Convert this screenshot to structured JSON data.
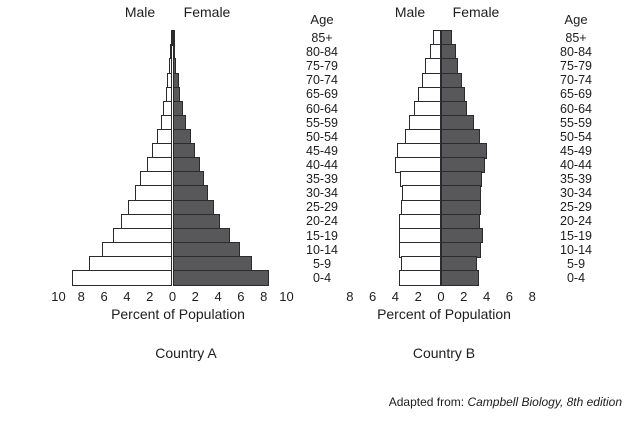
{
  "colors": {
    "background": "#ffffff",
    "male_fill": "#ffffff",
    "female_fill": "#58585a",
    "bar_border": "#2b2b2d",
    "text": "#1d1d1f"
  },
  "age_axis": {
    "title": "Age",
    "groups": [
      "85+",
      "80-84",
      "75-79",
      "70-74",
      "65-69",
      "60-64",
      "55-59",
      "50-54",
      "45-49",
      "40-44",
      "35-39",
      "30-34",
      "25-29",
      "20-24",
      "15-19",
      "10-14",
      "5-9",
      "0-4"
    ]
  },
  "attribution": {
    "prefix": "Adapted from: ",
    "source_italic": "Campbell Biology, 8th edition"
  },
  "chart_data": [
    {
      "type": "bar",
      "subtype": "population-pyramid",
      "title": "Country A",
      "xlabel": "Percent of Population",
      "male_label": "Male",
      "female_label": "Female",
      "categories": [
        "85+",
        "80-84",
        "75-79",
        "70-74",
        "65-69",
        "60-64",
        "55-59",
        "50-54",
        "45-49",
        "40-44",
        "35-39",
        "30-34",
        "25-29",
        "20-24",
        "15-19",
        "10-14",
        "5-9",
        "0-4"
      ],
      "series": [
        {
          "name": "Male",
          "side": "left",
          "values": [
            0.1,
            0.2,
            0.3,
            0.45,
            0.6,
            0.8,
            1.05,
            1.4,
            1.8,
            2.25,
            2.85,
            3.3,
            3.9,
            4.5,
            5.2,
            6.2,
            7.3,
            8.8
          ]
        },
        {
          "name": "Female",
          "side": "right",
          "values": [
            0.15,
            0.25,
            0.35,
            0.55,
            0.7,
            0.95,
            1.2,
            1.6,
            2.0,
            2.4,
            2.8,
            3.15,
            3.6,
            4.2,
            5.0,
            5.9,
            7.0,
            8.5
          ]
        }
      ],
      "axis_ticks": [
        "10",
        "8",
        "6",
        "4",
        "2",
        "0",
        "2",
        "4",
        "6",
        "8",
        "10"
      ],
      "xlim_each_side": 10,
      "grid": false,
      "legend": "none"
    },
    {
      "type": "bar",
      "subtype": "population-pyramid",
      "title": "Country B",
      "xlabel": "Percent of Population",
      "male_label": "Male",
      "female_label": "Female",
      "categories": [
        "85+",
        "80-84",
        "75-79",
        "70-74",
        "65-69",
        "60-64",
        "55-59",
        "50-54",
        "45-49",
        "40-44",
        "35-39",
        "30-34",
        "25-29",
        "20-24",
        "15-19",
        "10-14",
        "5-9",
        "0-4"
      ],
      "series": [
        {
          "name": "Male",
          "side": "left",
          "values": [
            0.7,
            1.0,
            1.4,
            1.7,
            2.0,
            2.4,
            2.8,
            3.2,
            3.9,
            4.0,
            3.6,
            3.4,
            3.5,
            3.7,
            3.7,
            3.7,
            3.5,
            3.7
          ]
        },
        {
          "name": "Female",
          "side": "right",
          "values": [
            1.0,
            1.3,
            1.5,
            1.8,
            2.1,
            2.3,
            2.9,
            3.4,
            4.0,
            3.9,
            3.6,
            3.5,
            3.5,
            3.4,
            3.7,
            3.5,
            3.2,
            3.3
          ]
        }
      ],
      "axis_ticks": [
        "8",
        "6",
        "4",
        "2",
        "0",
        "2",
        "4",
        "6",
        "8"
      ],
      "xlim_each_side": 8,
      "grid": false,
      "legend": "none"
    }
  ]
}
